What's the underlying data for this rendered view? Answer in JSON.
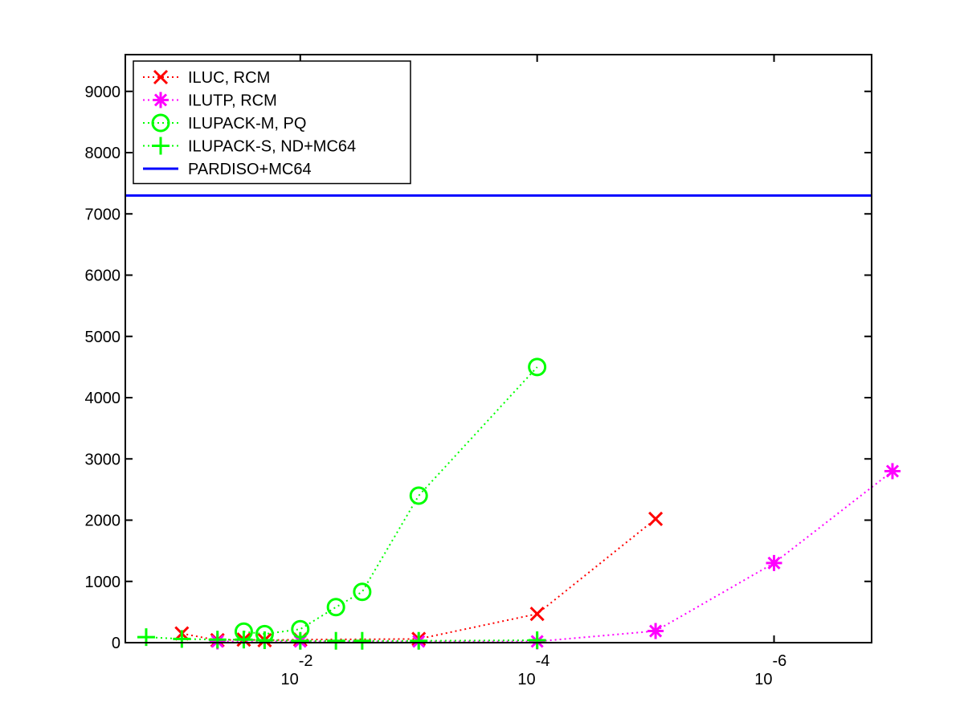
{
  "chart_data": {
    "type": "line",
    "title": "",
    "xlabel": "",
    "ylabel": "",
    "x_scale": "log-reversed",
    "xlim": [
      0.3,
      1.5e-07
    ],
    "ylim": [
      0,
      9600
    ],
    "y_ticks": [
      0,
      1000,
      2000,
      3000,
      4000,
      5000,
      6000,
      7000,
      8000,
      9000
    ],
    "y_tick_labels": [
      "0",
      "1000",
      "2000",
      "3000",
      "4000",
      "5000",
      "6000",
      "7000",
      "8000",
      "9000"
    ],
    "x_ticks": [
      {
        "value": 0.01,
        "base": "10",
        "exponent": "-2"
      },
      {
        "value": 0.0001,
        "base": "10",
        "exponent": "-4"
      },
      {
        "value": 1e-06,
        "base": "10",
        "exponent": "-6"
      }
    ],
    "grid": false,
    "legend_position": "top-left",
    "series": [
      {
        "name": "ILUC, RCM",
        "color": "#ff0000",
        "marker": "x",
        "line": "dotted",
        "points": [
          [
            0.1,
            150
          ],
          [
            0.05,
            40
          ],
          [
            0.03,
            50
          ],
          [
            0.02,
            40
          ],
          [
            0.01,
            50
          ],
          [
            0.001,
            60
          ],
          [
            0.0001,
            470
          ],
          [
            1e-05,
            2020
          ]
        ]
      },
      {
        "name": "ILUTP, RCM",
        "color": "#ff00ff",
        "marker": "asterisk",
        "line": "dotted",
        "points": [
          [
            0.05,
            20
          ],
          [
            0.01,
            20
          ],
          [
            0.001,
            20
          ],
          [
            0.0001,
            20
          ],
          [
            1e-05,
            190
          ],
          [
            1e-06,
            1300
          ],
          [
            1e-07,
            2800
          ]
        ]
      },
      {
        "name": "ILUPACK-M, PQ",
        "color": "#00ff00",
        "marker": "circle",
        "line": "dotted",
        "points": [
          [
            0.03,
            180
          ],
          [
            0.02,
            140
          ],
          [
            0.01,
            220
          ],
          [
            0.005,
            580
          ],
          [
            0.003,
            830
          ],
          [
            0.001,
            2400
          ],
          [
            0.0001,
            4500
          ]
        ]
      },
      {
        "name": "ILUPACK-S, ND+MC64",
        "color": "#00ff00",
        "marker": "plus",
        "line": "dotted",
        "points": [
          [
            0.2,
            90
          ],
          [
            0.1,
            60
          ],
          [
            0.05,
            50
          ],
          [
            0.03,
            50
          ],
          [
            0.02,
            40
          ],
          [
            0.01,
            30
          ],
          [
            0.005,
            30
          ],
          [
            0.003,
            30
          ],
          [
            0.001,
            30
          ],
          [
            0.0001,
            40
          ]
        ]
      },
      {
        "name": "PARDISO+MC64",
        "color": "#0000ff",
        "marker": "none",
        "line": "solid",
        "points": [
          [
            0.3,
            7300
          ],
          [
            1.5e-07,
            7300
          ]
        ]
      }
    ]
  }
}
